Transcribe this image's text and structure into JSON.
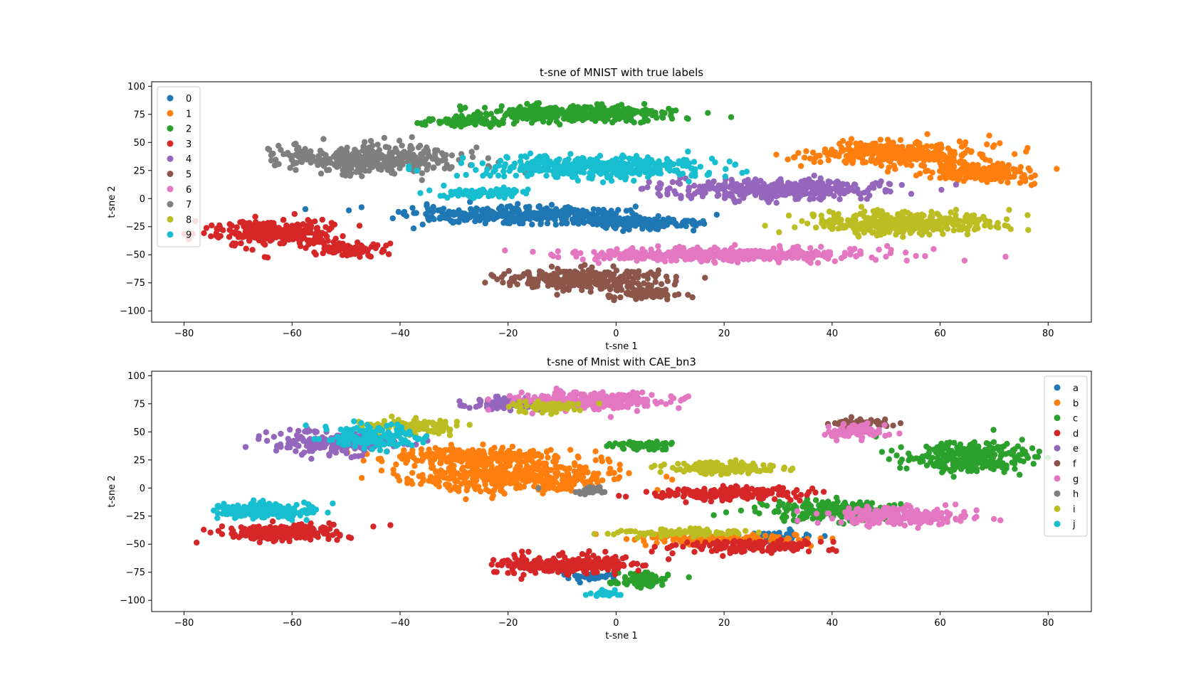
{
  "chart_data": [
    {
      "type": "scatter",
      "title": "t-sne of MNIST with true labels",
      "xlabel": "t-sne 1",
      "ylabel": "t-sne 2",
      "xlim": [
        -86,
        88
      ],
      "ylim": [
        -110,
        104
      ],
      "xticks": [
        -80,
        -60,
        -40,
        -20,
        0,
        20,
        40,
        60,
        80
      ],
      "yticks": [
        100,
        75,
        50,
        25,
        0,
        -25,
        -50,
        -75,
        -100
      ],
      "legend_position": "top-left",
      "grid": false,
      "series": [
        {
          "name": "0",
          "color": "#1f77b4",
          "clusters": [
            [
              -18,
              -15,
              18,
              7,
              350
            ],
            [
              5,
              -22,
              10,
              5,
              150
            ]
          ]
        },
        {
          "name": "1",
          "color": "#ff7f0e",
          "clusters": [
            [
              52,
              40,
              14,
              10,
              350
            ],
            [
              68,
              23,
              8,
              7,
              200
            ]
          ]
        },
        {
          "name": "2",
          "color": "#2ca02c",
          "clusters": [
            [
              -8,
              76,
              16,
              7,
              350
            ],
            [
              -28,
              68,
              7,
              4,
              80
            ]
          ]
        },
        {
          "name": "3",
          "color": "#d62728",
          "clusters": [
            [
              -63,
              -30,
              10,
              10,
              320
            ],
            [
              -50,
              -45,
              6,
              5,
              80
            ]
          ]
        },
        {
          "name": "4",
          "color": "#9467bd",
          "clusters": [
            [
              30,
              8,
              18,
              8,
              380
            ]
          ]
        },
        {
          "name": "5",
          "color": "#8c564b",
          "clusters": [
            [
              -6,
              -72,
              14,
              8,
              300
            ],
            [
              5,
              -85,
              6,
              4,
              80
            ]
          ]
        },
        {
          "name": "6",
          "color": "#e377c2",
          "clusters": [
            [
              20,
              -50,
              24,
              5,
              450
            ]
          ]
        },
        {
          "name": "7",
          "color": "#7f7f7f",
          "clusters": [
            [
              -45,
              35,
              15,
              12,
              380
            ]
          ]
        },
        {
          "name": "8",
          "color": "#bcbd22",
          "clusters": [
            [
              53,
              -22,
              15,
              9,
              400
            ]
          ]
        },
        {
          "name": "9",
          "color": "#17becf",
          "clusters": [
            [
              -4,
              28,
              20,
              9,
              420
            ],
            [
              -25,
              5,
              7,
              4,
              80
            ]
          ]
        }
      ]
    },
    {
      "type": "scatter",
      "title": "t-sne of Mnist with CAE_bn3",
      "xlabel": "t-sne 1",
      "ylabel": "t-sne 2",
      "xlim": [
        -86,
        88
      ],
      "ylim": [
        -110,
        104
      ],
      "xticks": [
        -80,
        -60,
        -40,
        -20,
        0,
        20,
        40,
        60,
        80
      ],
      "yticks": [
        100,
        75,
        50,
        25,
        0,
        -25,
        -50,
        -75,
        -100
      ],
      "legend_position": "top-right",
      "grid": false,
      "series": [
        {
          "name": "a",
          "color": "#1f77b4",
          "clusters": [
            [
              -5,
              -78,
              5,
              4,
              40
            ],
            [
              30,
              -42,
              6,
              4,
              40
            ]
          ]
        },
        {
          "name": "b",
          "color": "#ff7f0e",
          "clusters": [
            [
              -20,
              10,
              18,
              12,
              450
            ],
            [
              -25,
              28,
              15,
              7,
              250
            ],
            [
              20,
              -45,
              16,
              5,
              150
            ]
          ]
        },
        {
          "name": "c",
          "color": "#2ca02c",
          "clusters": [
            [
              65,
              28,
              10,
              12,
              300
            ],
            [
              40,
              -20,
              12,
              8,
              200
            ],
            [
              5,
              -82,
              5,
              6,
              100
            ],
            [
              5,
              38,
              5,
              4,
              60
            ]
          ]
        },
        {
          "name": "d",
          "color": "#d62728",
          "clusters": [
            [
              -63,
              -40,
              10,
              6,
              250
            ],
            [
              -10,
              -68,
              12,
              7,
              250
            ],
            [
              20,
              -5,
              12,
              5,
              200
            ],
            [
              25,
              -52,
              12,
              5,
              150
            ]
          ]
        },
        {
          "name": "e",
          "color": "#9467bd",
          "clusters": [
            [
              -20,
              75,
              6,
              5,
              80
            ],
            [
              -52,
              40,
              10,
              10,
              200
            ]
          ]
        },
        {
          "name": "f",
          "color": "#8c564b",
          "clusters": [
            [
              45,
              58,
              5,
              3,
              50
            ]
          ]
        },
        {
          "name": "g",
          "color": "#e377c2",
          "clusters": [
            [
              -5,
              78,
              12,
              6,
              300
            ],
            [
              52,
              -25,
              12,
              7,
              250
            ],
            [
              45,
              50,
              5,
              6,
              80
            ]
          ]
        },
        {
          "name": "h",
          "color": "#7f7f7f",
          "clusters": [
            [
              -5,
              -2,
              4,
              3,
              30
            ]
          ]
        },
        {
          "name": "i",
          "color": "#bcbd22",
          "clusters": [
            [
              -38,
              55,
              8,
              6,
              100
            ],
            [
              20,
              18,
              9,
              5,
              150
            ],
            [
              -12,
              72,
              6,
              4,
              60
            ],
            [
              10,
              -40,
              12,
              3,
              80
            ]
          ]
        },
        {
          "name": "j",
          "color": "#17becf",
          "clusters": [
            [
              -65,
              -20,
              8,
              6,
              250
            ],
            [
              -45,
              45,
              8,
              10,
              150
            ],
            [
              -2,
              -94,
              3,
              2,
              30
            ]
          ]
        }
      ]
    }
  ]
}
